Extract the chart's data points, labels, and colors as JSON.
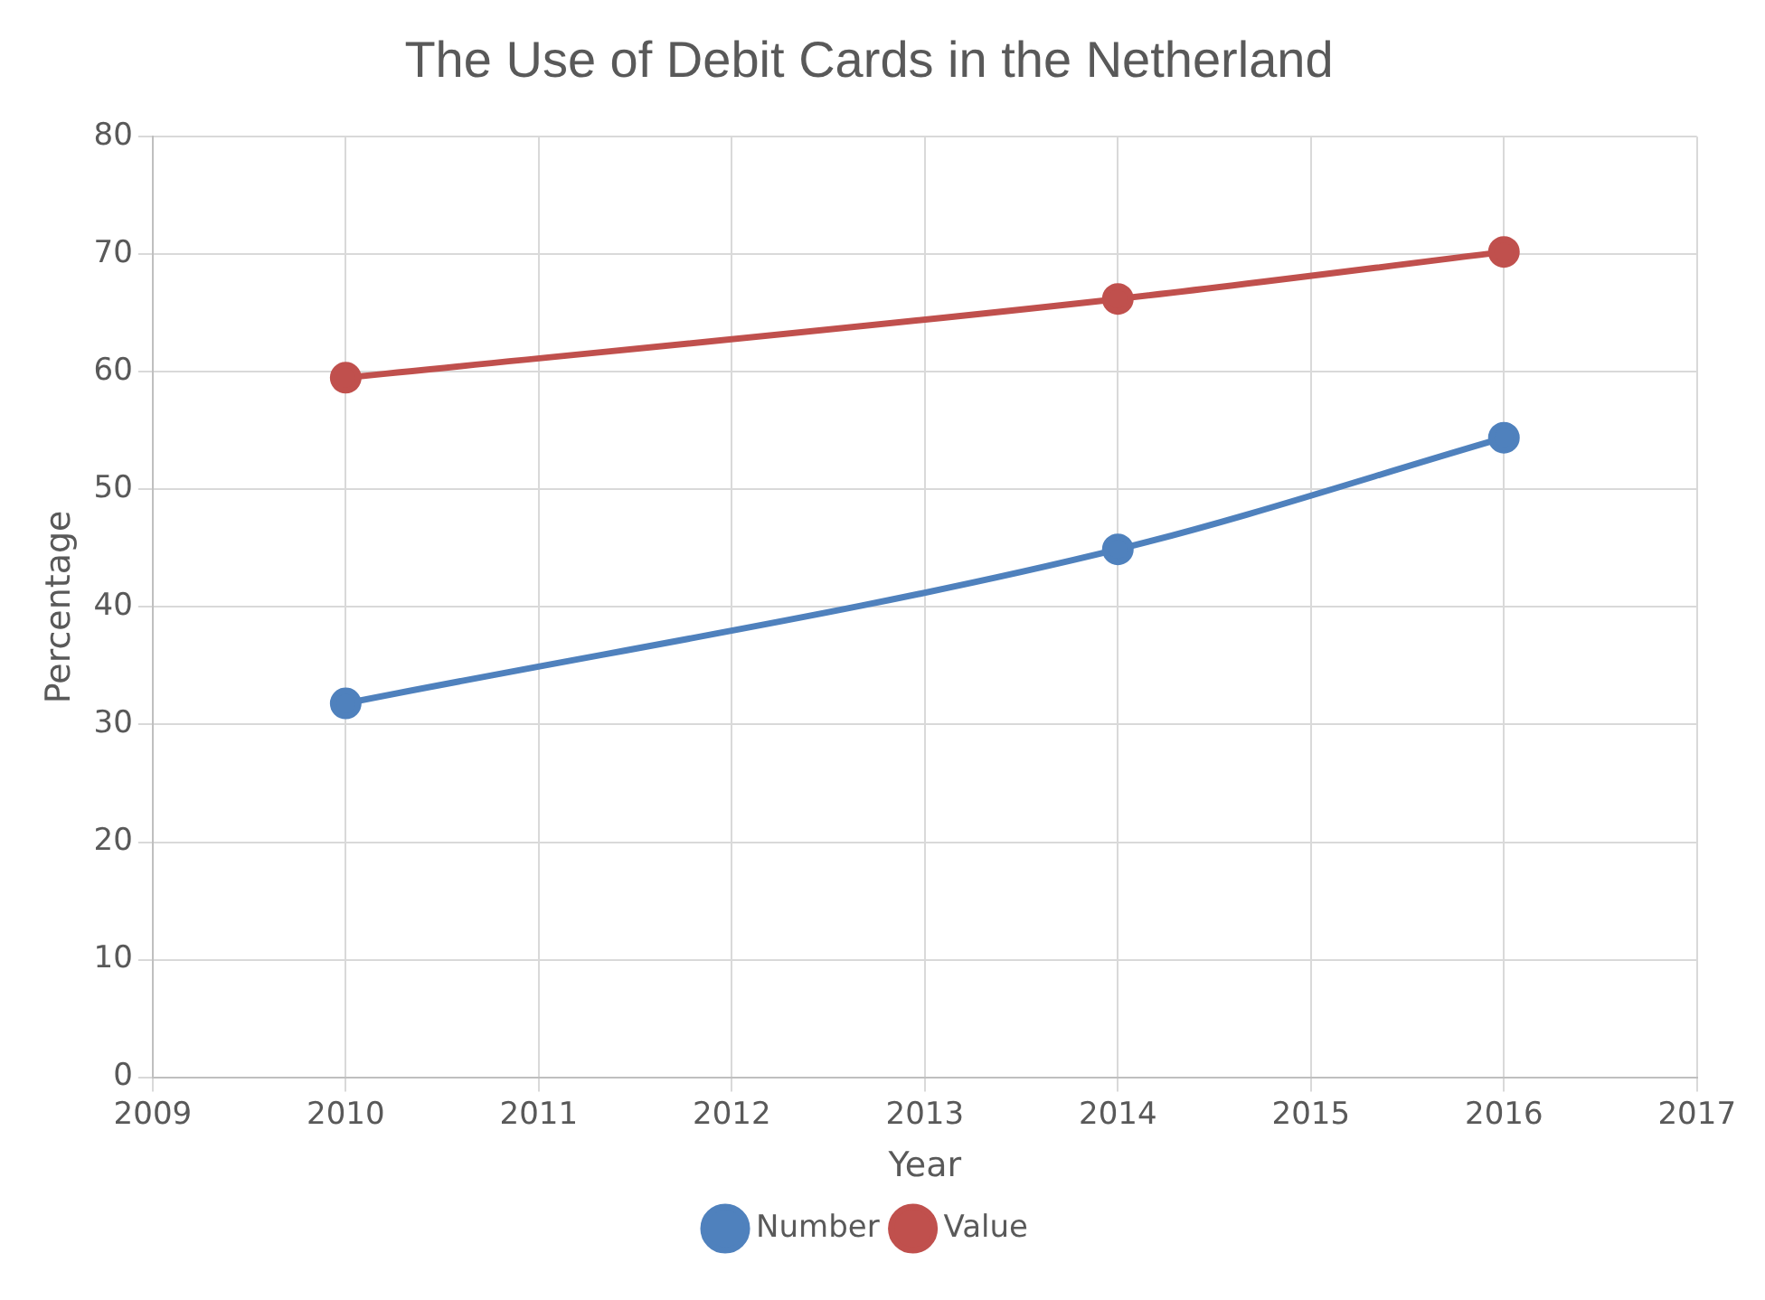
{
  "chart_data": {
    "type": "line",
    "title": "The Use of Debit Cards in the Netherland",
    "xlabel": "Year",
    "ylabel": "Percentage",
    "x": [
      2010,
      2014,
      2016
    ],
    "series": [
      {
        "name": "Number",
        "color": "#4f81bd",
        "values": [
          31.8,
          44.9,
          54.4
        ]
      },
      {
        "name": "Value",
        "color": "#c0504d",
        "values": [
          59.5,
          66.2,
          70.2
        ]
      }
    ],
    "xlim": [
      2009,
      2017
    ],
    "xticks": [
      2009,
      2010,
      2011,
      2012,
      2013,
      2014,
      2015,
      2016,
      2017
    ],
    "ylim": [
      0,
      80
    ],
    "yticks": [
      0,
      10,
      20,
      30,
      40,
      50,
      60,
      70,
      80
    ],
    "grid": true,
    "legend": "bottom",
    "marker": "circle",
    "line_style": "solid"
  }
}
